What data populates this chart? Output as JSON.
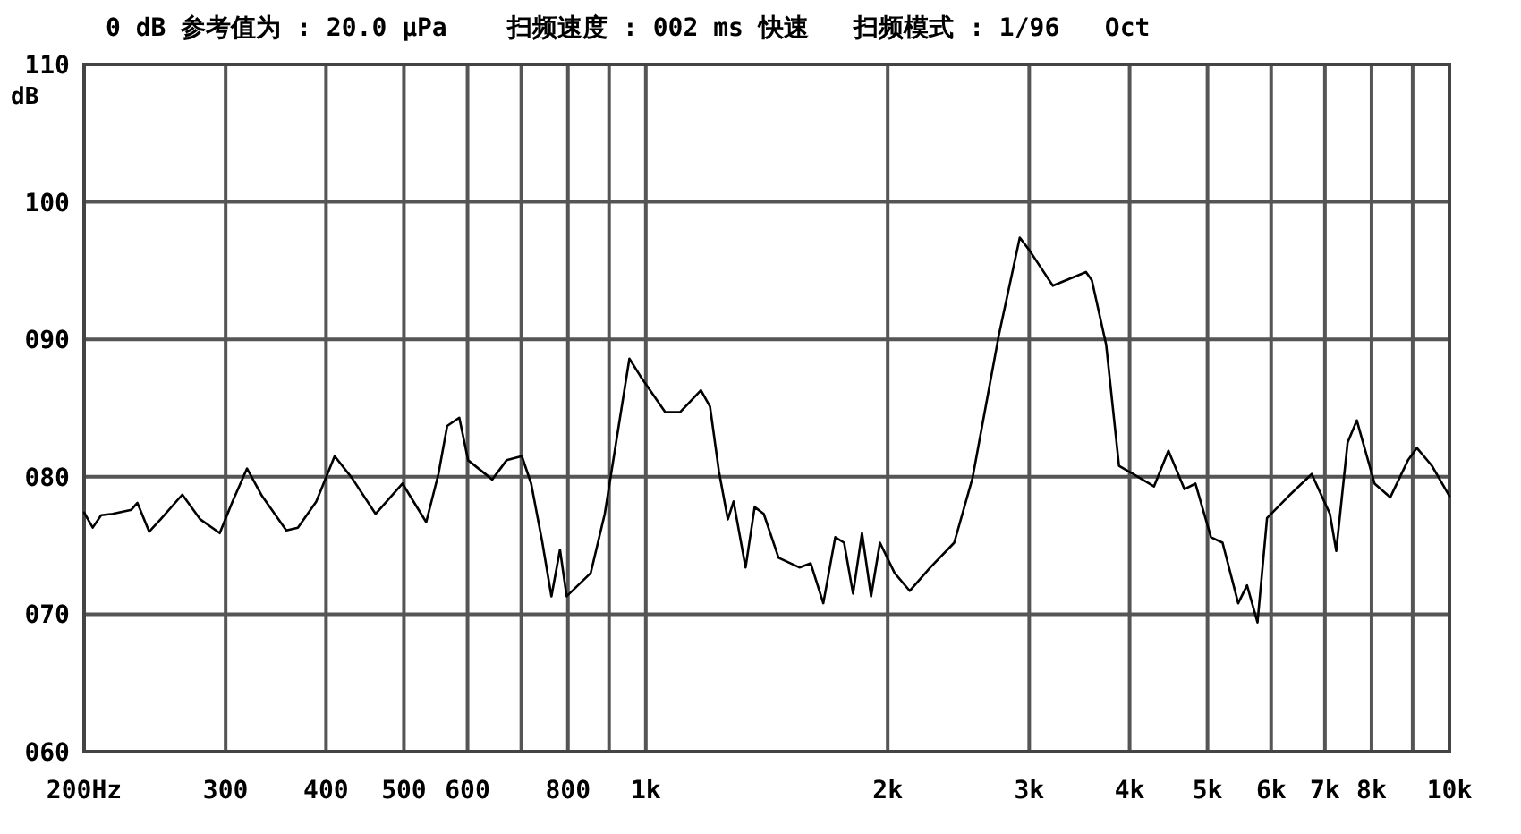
{
  "chart_data": {
    "type": "line",
    "title": "0 dB 参考值为 : 20.0 μPa    扫频速度 : 002 ms 快速   扫频模式 : 1/96   Oct",
    "ylabel": "dB",
    "x": [
      200,
      205,
      210,
      217,
      229,
      233,
      241,
      249,
      265,
      279,
      295,
      306,
      319,
      333,
      357,
      369,
      389,
      410,
      431,
      461,
      498,
      533,
      552,
      566,
      586,
      601,
      644,
      671,
      701,
      720,
      743,
      763,
      782,
      797,
      854,
      889,
      954,
      985,
      1057,
      1103,
      1171,
      1202,
      1233,
      1265,
      1286,
      1331,
      1366,
      1402,
      1463,
      1553,
      1604,
      1663,
      1721,
      1765,
      1811,
      1858,
      1907,
      1956,
      2040,
      2130,
      2260,
      2420,
      2550,
      2750,
      2920,
      3000,
      3210,
      3530,
      3590,
      3740,
      3880,
      4040,
      4290,
      4470,
      4680,
      4830,
      5050,
      5220,
      5460,
      5600,
      5770,
      5930,
      6310,
      6740,
      7100,
      7230,
      7470,
      7670,
      8070,
      8440,
      8880,
      9110,
      9510,
      10000
    ],
    "series": [
      {
        "color": "#000000",
        "values": [
          77.4,
          76.3,
          77.2,
          77.3,
          77.6,
          78.1,
          76.0,
          76.9,
          78.7,
          76.9,
          75.9,
          78.2,
          80.6,
          78.6,
          76.1,
          76.3,
          78.2,
          81.5,
          79.9,
          77.3,
          79.5,
          76.7,
          80.2,
          83.7,
          84.3,
          81.2,
          79.8,
          81.2,
          81.5,
          79.5,
          75.3,
          71.3,
          74.7,
          71.3,
          73.0,
          77.3,
          88.6,
          87.3,
          84.7,
          84.7,
          86.3,
          85.1,
          80.4,
          76.9,
          78.2,
          73.4,
          77.8,
          77.3,
          74.1,
          73.4,
          73.7,
          70.8,
          75.6,
          75.2,
          71.5,
          75.9,
          71.3,
          75.2,
          73.0,
          71.7,
          73.4,
          75.2,
          79.9,
          90.3,
          97.4,
          96.5,
          93.9,
          94.9,
          94.3,
          89.6,
          80.8,
          80.2,
          79.3,
          81.9,
          79.1,
          79.5,
          75.6,
          75.2,
          70.8,
          72.1,
          69.4,
          77.0,
          78.6,
          80.2,
          77.3,
          74.6,
          82.5,
          84.1,
          79.5,
          78.5,
          81.2,
          82.1,
          80.8,
          78.6
        ]
      }
    ],
    "xlim": [
      200,
      10000
    ],
    "ylim": [
      60,
      110
    ],
    "log": "x",
    "xticks": [
      {
        "value": 200,
        "label": "200Hz"
      },
      300,
      400,
      500,
      600,
      {
        "value": 700,
        "label": null
      },
      800,
      {
        "value": 900,
        "label": null
      },
      {
        "value": 1000,
        "label": "1k"
      },
      {
        "value": 2000,
        "label": "2k"
      },
      {
        "value": 3000,
        "label": "3k"
      },
      {
        "value": 4000,
        "label": "4k"
      },
      {
        "value": 5000,
        "label": "5k"
      },
      {
        "value": 6000,
        "label": "6k"
      },
      {
        "value": 7000,
        "label": "7k"
      },
      {
        "value": 8000,
        "label": "8k"
      },
      {
        "value": 9000,
        "label": null
      },
      {
        "value": 10000,
        "label": "10k"
      }
    ],
    "yticks": [
      {
        "value": 60,
        "label": "060"
      },
      {
        "value": 70,
        "label": "070"
      },
      {
        "value": 80,
        "label": "080"
      },
      {
        "value": 90,
        "label": "090"
      },
      100,
      110
    ],
    "grid": true,
    "line_style": "solid"
  }
}
